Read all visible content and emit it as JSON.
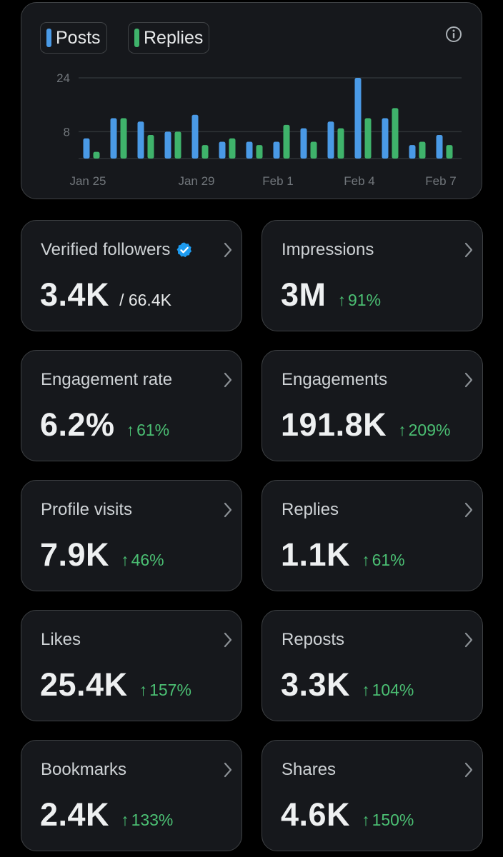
{
  "legend": {
    "posts_label": "Posts",
    "replies_label": "Replies",
    "posts_color": "#4a9ae6",
    "replies_color": "#3fb36b"
  },
  "chart_data": {
    "type": "bar",
    "x_tick_labels": [
      "Jan 25",
      "Jan 29",
      "Feb 1",
      "Feb 4",
      "Feb 7"
    ],
    "y_tick_labels": [
      "8",
      "24"
    ],
    "ylim": [
      0,
      24
    ],
    "grid": true,
    "legend_placement": "top-left",
    "categories": [
      "Jan 25",
      "Jan 26",
      "Jan 27",
      "Jan 28",
      "Jan 29",
      "Jan 30",
      "Jan 31",
      "Feb 1",
      "Feb 2",
      "Feb 3",
      "Feb 4",
      "Feb 5",
      "Feb 6",
      "Feb 7"
    ],
    "series": [
      {
        "name": "Posts",
        "color": "#4a9ae6",
        "values": [
          6,
          12,
          11,
          8,
          13,
          5,
          5,
          5,
          9,
          11,
          24,
          12,
          4,
          7
        ]
      },
      {
        "name": "Replies",
        "color": "#3fb36b",
        "values": [
          2,
          12,
          7,
          8,
          4,
          6,
          4,
          10,
          5,
          9,
          12,
          15,
          5,
          4
        ]
      }
    ]
  },
  "metrics": [
    {
      "label": "Verified followers",
      "value": "3.4K",
      "total": "/ 66.4K",
      "change": "",
      "verified": true
    },
    {
      "label": "Impressions",
      "value": "3M",
      "change": "91%"
    },
    {
      "label": "Engagement rate",
      "value": "6.2%",
      "change": "61%"
    },
    {
      "label": "Engagements",
      "value": "191.8K",
      "change": "209%"
    },
    {
      "label": "Profile visits",
      "value": "7.9K",
      "change": "46%"
    },
    {
      "label": "Replies",
      "value": "1.1K",
      "change": "61%"
    },
    {
      "label": "Likes",
      "value": "25.4K",
      "change": "157%"
    },
    {
      "label": "Reposts",
      "value": "3.3K",
      "change": "104%"
    },
    {
      "label": "Bookmarks",
      "value": "2.4K",
      "change": "133%"
    },
    {
      "label": "Shares",
      "value": "4.6K",
      "change": "150%"
    }
  ],
  "arrow": "↑",
  "icons": {
    "info": "info-icon",
    "chevron": "chevron-right-icon",
    "verified": "verified-badge-icon"
  },
  "colors": {
    "background": "#000000",
    "card": "#16181c",
    "border": "#3e4144",
    "positive": "#4bbf73",
    "verified": "#1d9bf0"
  }
}
